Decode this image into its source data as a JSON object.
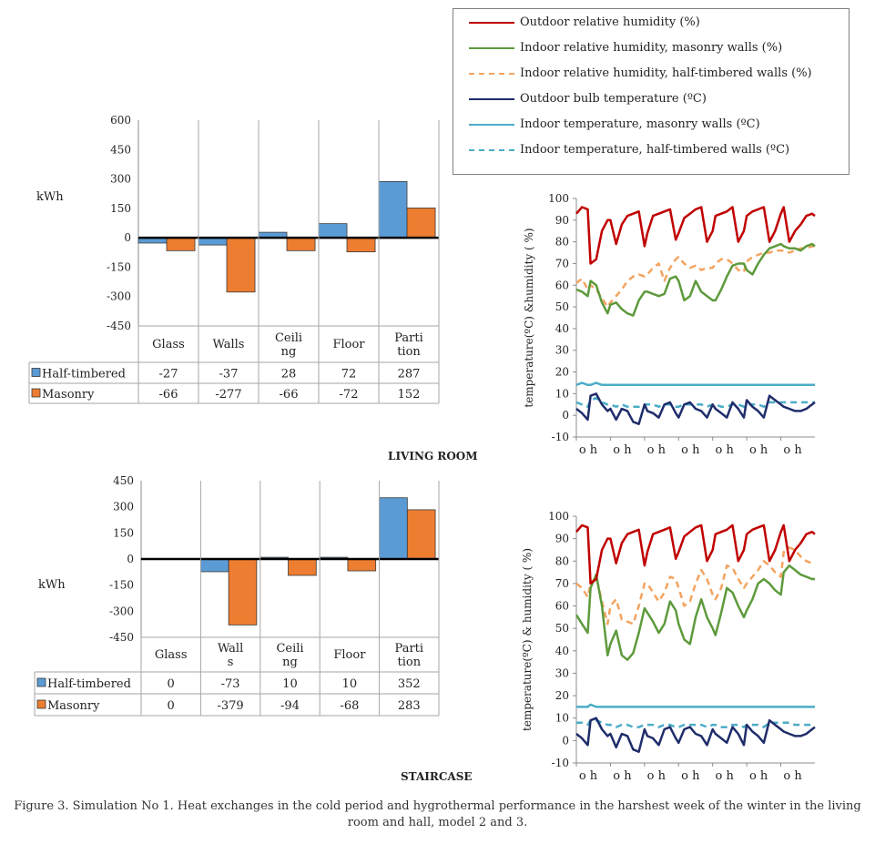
{
  "legend": {
    "items": [
      {
        "label": "Outdoor relative humidity (%)",
        "color": "#c00000",
        "style": "solid"
      },
      {
        "label": "Indoor relative humidity, masonry walls (%)",
        "color": "#5e9a3c",
        "style": "solid"
      },
      {
        "label": "Indoor relative humidity, half-timbered walls (%)",
        "color": "#f4a460",
        "style": "dashed"
      },
      {
        "label": "Outdoor bulb temperature (ºC)",
        "color": "#1f2d6b",
        "style": "solid"
      },
      {
        "label": "Indoor temperature, masonry walls (ºC)",
        "color": "#4bacc6",
        "style": "solid"
      },
      {
        "label": "Indoor temperature, half-timbered walls (ºC)",
        "color": "#4bacc6",
        "style": "dashed"
      }
    ]
  },
  "sections": {
    "living_room": "LIVING ROOM",
    "staircase": "STAIRCASE"
  },
  "caption": {
    "line1": "Figure 3. Simulation No 1. Heat exchanges in the cold period and hygrothermal performance in the harshest week of the winter in the living",
    "line2": "room and hall, model 2 and 3."
  },
  "chart_data": [
    {
      "id": "living-bar",
      "type": "bar",
      "ylabel": "kWh",
      "ylim": [
        -450,
        600
      ],
      "yticks": [
        600,
        450,
        300,
        150,
        0,
        -150,
        -300,
        -450
      ],
      "categories": [
        "Glass",
        "Walls",
        "Ceili\nng",
        "Floor",
        "Parti\ntion"
      ],
      "series": [
        {
          "name": "Half-timbered",
          "color": "#5b9bd5",
          "values": [
            -27,
            -37,
            28,
            72,
            287
          ]
        },
        {
          "name": "Masonry",
          "color": "#ed7d31",
          "values": [
            -66,
            -277,
            -66,
            -72,
            152
          ]
        }
      ]
    },
    {
      "id": "stair-bar",
      "type": "bar",
      "ylabel": "kWh",
      "ylim": [
        -450,
        450
      ],
      "yticks": [
        450,
        300,
        150,
        0,
        -150,
        -300,
        -450
      ],
      "categories": [
        "Glass",
        "Wall\ns",
        "Ceili\nng",
        "Floor",
        "Parti\ntion"
      ],
      "series": [
        {
          "name": "Half-timbered",
          "color": "#5b9bd5",
          "values": [
            0,
            -73,
            10,
            10,
            352
          ]
        },
        {
          "name": "Masonry",
          "color": "#ed7d31",
          "values": [
            0,
            -379,
            -94,
            -68,
            283
          ]
        }
      ]
    },
    {
      "id": "living-line",
      "type": "line",
      "ylabel": "temperature(ºC) &humidity ( %)",
      "ylim": [
        -10,
        100
      ],
      "yticks": [
        100,
        90,
        80,
        70,
        60,
        50,
        40,
        30,
        20,
        10,
        0,
        -10
      ],
      "xticks": [
        "o h",
        "o h",
        "o h",
        "o h",
        "o h",
        "o h",
        "o h"
      ],
      "x": [
        0,
        4,
        8,
        10,
        14,
        18,
        22,
        24,
        28,
        32,
        36,
        40,
        44,
        48,
        50,
        54,
        58,
        62,
        66,
        70,
        72,
        76,
        80,
        84,
        88,
        92,
        96,
        98,
        102,
        106,
        110,
        114,
        118,
        120,
        124,
        128,
        132,
        136,
        140,
        144,
        146,
        150,
        154,
        158,
        162,
        166,
        168
      ],
      "series": [
        {
          "name": "Outdoor relative humidity (%)",
          "color": "#c00000",
          "style": "solid",
          "values": [
            93,
            96,
            95,
            70,
            72,
            85,
            90,
            90,
            79,
            88,
            92,
            93,
            94,
            78,
            84,
            92,
            93,
            94,
            95,
            81,
            84,
            91,
            93,
            95,
            96,
            80,
            85,
            92,
            93,
            94,
            96,
            80,
            85,
            92,
            94,
            95,
            96,
            80,
            85,
            93,
            96,
            80,
            85,
            88,
            92,
            93,
            92
          ]
        },
        {
          "name": "Indoor relative humidity, masonry walls (%)",
          "color": "#5e9a3c",
          "style": "solid",
          "values": [
            58,
            57,
            55,
            62,
            60,
            52,
            47,
            51,
            52,
            49,
            47,
            46,
            53,
            57,
            57,
            56,
            55,
            56,
            63,
            64,
            62,
            53,
            55,
            62,
            57,
            55,
            53,
            53,
            58,
            64,
            69,
            70,
            70,
            67,
            65,
            70,
            74,
            77,
            78,
            79,
            78,
            77,
            77,
            76,
            78,
            79,
            78
          ]
        },
        {
          "name": "Indoor relative humidity, half-timbered walls (%)",
          "color": "#f4a460",
          "style": "dashed",
          "values": [
            61,
            63,
            58,
            60,
            58,
            54,
            50,
            52,
            55,
            58,
            62,
            64,
            65,
            64,
            65,
            68,
            70,
            62,
            68,
            72,
            73,
            70,
            68,
            69,
            67,
            68,
            68,
            70,
            72,
            72,
            70,
            67,
            66,
            71,
            73,
            74,
            75,
            75,
            76,
            76,
            76,
            75,
            76,
            77,
            77,
            78,
            78
          ]
        },
        {
          "name": "Outdoor bulb temperature (ºC)",
          "color": "#1f2d6b",
          "style": "solid",
          "values": [
            3,
            1,
            -2,
            9,
            10,
            5,
            2,
            3,
            -2,
            3,
            2,
            -3,
            -4,
            5,
            2,
            1,
            -1,
            5,
            6,
            1,
            -1,
            5,
            6,
            3,
            2,
            -1,
            5,
            3,
            1,
            -1,
            6,
            3,
            -1,
            7,
            4,
            2,
            -1,
            9,
            7,
            5,
            4,
            3,
            2,
            2,
            3,
            5,
            6
          ]
        },
        {
          "name": "Indoor temperature, masonry walls (ºC)",
          "color": "#4bacc6",
          "style": "solid",
          "values": [
            14,
            15,
            14,
            14,
            15,
            14,
            14,
            14,
            14,
            14,
            14,
            14,
            14,
            14,
            14,
            14,
            14,
            14,
            14,
            14,
            14,
            14,
            14,
            14,
            14,
            14,
            14,
            14,
            14,
            14,
            14,
            14,
            14,
            14,
            14,
            14,
            14,
            14,
            14,
            14,
            14,
            14,
            14,
            14,
            14,
            14,
            14
          ]
        },
        {
          "name": "Indoor temperature, half-timbered walls (ºC)",
          "color": "#4bacc6",
          "style": "dashed",
          "values": [
            6,
            5,
            4,
            7,
            8,
            6,
            5,
            5,
            4,
            5,
            4,
            4,
            4,
            5,
            5,
            5,
            4,
            5,
            5,
            4,
            4,
            5,
            5,
            5,
            5,
            4,
            5,
            5,
            4,
            4,
            5,
            5,
            4,
            5,
            5,
            5,
            4,
            6,
            6,
            6,
            6,
            6,
            6,
            6,
            6,
            6,
            6
          ]
        }
      ]
    },
    {
      "id": "stair-line",
      "type": "line",
      "ylabel": "temperature(ºC) & humidity ( %)",
      "ylim": [
        -10,
        100
      ],
      "yticks": [
        100,
        90,
        80,
        70,
        60,
        50,
        40,
        30,
        20,
        10,
        0,
        -10
      ],
      "xticks": [
        "o h",
        "o h",
        "o h",
        "o h",
        "o h",
        "o h",
        "o h"
      ],
      "x": [
        0,
        4,
        8,
        10,
        14,
        18,
        22,
        24,
        28,
        32,
        36,
        40,
        44,
        48,
        50,
        54,
        58,
        62,
        66,
        70,
        72,
        76,
        80,
        84,
        88,
        92,
        96,
        98,
        102,
        106,
        110,
        114,
        118,
        120,
        124,
        128,
        132,
        136,
        140,
        144,
        146,
        150,
        154,
        158,
        162,
        166,
        168
      ],
      "series": [
        {
          "name": "Outdoor relative humidity (%)",
          "color": "#c00000",
          "style": "solid",
          "values": [
            93,
            96,
            95,
            70,
            72,
            85,
            90,
            90,
            79,
            88,
            92,
            93,
            94,
            78,
            84,
            92,
            93,
            94,
            95,
            81,
            84,
            91,
            93,
            95,
            96,
            80,
            85,
            92,
            93,
            94,
            96,
            80,
            85,
            92,
            94,
            95,
            96,
            80,
            85,
            93,
            96,
            80,
            85,
            88,
            92,
            93,
            92
          ]
        },
        {
          "name": "Indoor relative humidity, masonry walls (%)",
          "color": "#5e9a3c",
          "style": "solid",
          "values": [
            56,
            52,
            48,
            68,
            74,
            60,
            38,
            43,
            49,
            38,
            36,
            39,
            48,
            59,
            57,
            53,
            48,
            52,
            62,
            58,
            52,
            45,
            43,
            55,
            63,
            55,
            50,
            47,
            57,
            68,
            66,
            60,
            55,
            58,
            63,
            70,
            72,
            70,
            67,
            65,
            75,
            78,
            76,
            74,
            73,
            72,
            72
          ]
        },
        {
          "name": "Indoor relative humidity, half-timbered walls (%)",
          "color": "#f4a460",
          "style": "dashed",
          "values": [
            70,
            68,
            64,
            70,
            73,
            62,
            52,
            60,
            63,
            54,
            53,
            52,
            60,
            70,
            70,
            66,
            62,
            66,
            73,
            72,
            68,
            60,
            62,
            70,
            76,
            72,
            65,
            63,
            68,
            78,
            77,
            72,
            68,
            70,
            73,
            76,
            80,
            78,
            75,
            73,
            84,
            86,
            85,
            82,
            80,
            79,
            79
          ]
        },
        {
          "name": "Outdoor bulb temperature (ºC)",
          "color": "#1f2d6b",
          "style": "solid",
          "values": [
            3,
            1,
            -2,
            9,
            10,
            5,
            2,
            3,
            -3,
            3,
            2,
            -4,
            -5,
            5,
            2,
            1,
            -2,
            5,
            6,
            1,
            -1,
            5,
            6,
            3,
            2,
            -2,
            5,
            3,
            1,
            -1,
            6,
            3,
            -2,
            7,
            4,
            2,
            -1,
            9,
            7,
            5,
            4,
            3,
            2,
            2,
            3,
            5,
            6
          ]
        },
        {
          "name": "Indoor temperature, masonry walls (ºC)",
          "color": "#4bacc6",
          "style": "solid",
          "values": [
            15,
            15,
            15,
            16,
            15,
            15,
            15,
            15,
            15,
            15,
            15,
            15,
            15,
            15,
            15,
            15,
            15,
            15,
            15,
            15,
            15,
            15,
            15,
            15,
            15,
            15,
            15,
            15,
            15,
            15,
            15,
            15,
            15,
            15,
            15,
            15,
            15,
            15,
            15,
            15,
            15,
            15,
            15,
            15,
            15,
            15,
            15
          ]
        },
        {
          "name": "Indoor temperature, half-timbered walls (ºC)",
          "color": "#4bacc6",
          "style": "dashed",
          "values": [
            8,
            8,
            7,
            9,
            9,
            8,
            7,
            7,
            6,
            7,
            7,
            6,
            6,
            7,
            7,
            7,
            6,
            7,
            7,
            6,
            6,
            7,
            7,
            7,
            7,
            6,
            7,
            7,
            6,
            6,
            7,
            7,
            6,
            7,
            7,
            7,
            6,
            8,
            8,
            8,
            8,
            8,
            7,
            7,
            7,
            7,
            7
          ]
        }
      ]
    }
  ]
}
